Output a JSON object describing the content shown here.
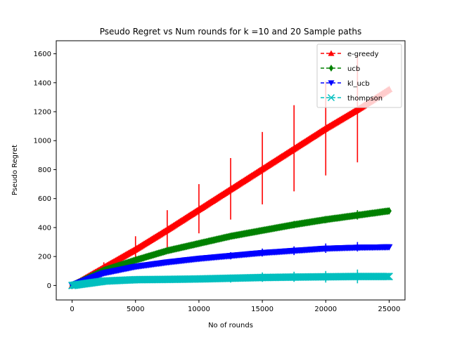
{
  "chart_data": {
    "type": "line",
    "title": "Pseudo Regret vs Num rounds for k =10 and 20 Sample paths",
    "xlabel": "No of rounds",
    "ylabel": "Pseudo Regret",
    "xlim": [
      -1250,
      26250
    ],
    "ylim": [
      -100,
      1690
    ],
    "xticks": [
      0,
      5000,
      10000,
      15000,
      20000,
      25000
    ],
    "yticks": [
      0,
      200,
      400,
      600,
      800,
      1000,
      1200,
      1400,
      1600
    ],
    "grid": false,
    "legend_position": "top-right",
    "series": [
      {
        "name": "e-greedy",
        "color": "#ff0000",
        "marker": "triangle-up",
        "x": [
          0,
          2500,
          5000,
          7500,
          10000,
          12500,
          15000,
          17500,
          20000,
          22500,
          25000
        ],
        "y": [
          0,
          125,
          250,
          385,
          525,
          665,
          805,
          945,
          1085,
          1215,
          1355
        ],
        "err_x": [
          2500,
          5000,
          7500,
          10000,
          12500,
          15000,
          17500,
          20000,
          22500
        ],
        "err_low": [
          90,
          160,
          250,
          360,
          455,
          560,
          650,
          760,
          850
        ],
        "err_high": [
          160,
          340,
          520,
          700,
          880,
          1060,
          1245,
          1410,
          1590
        ]
      },
      {
        "name": "ucb",
        "color": "#008000",
        "marker": "diamond",
        "x": [
          0,
          2500,
          5000,
          7500,
          10000,
          12500,
          15000,
          17500,
          20000,
          22500,
          25000
        ],
        "y": [
          0,
          105,
          175,
          240,
          290,
          340,
          380,
          420,
          455,
          485,
          515
        ],
        "err_x": [
          2500,
          5000,
          7500,
          10000,
          12500,
          15000,
          17500,
          20000,
          22500
        ],
        "err_low": [
          95,
          160,
          225,
          275,
          320,
          360,
          395,
          430,
          455
        ],
        "err_high": [
          115,
          190,
          255,
          310,
          360,
          400,
          445,
          480,
          520
        ]
      },
      {
        "name": "kl_ucb",
        "color": "#0000ff",
        "marker": "triangle-down",
        "x": [
          0,
          2500,
          5000,
          7500,
          10000,
          12500,
          15000,
          17500,
          20000,
          22500,
          25000
        ],
        "y": [
          0,
          85,
          130,
          160,
          185,
          205,
          225,
          240,
          255,
          262,
          265
        ],
        "err_x": [
          2500,
          5000,
          7500,
          10000,
          12500,
          15000,
          17500,
          20000,
          22500
        ],
        "err_low": [
          75,
          115,
          145,
          165,
          180,
          200,
          210,
          225,
          235
        ],
        "err_high": [
          95,
          145,
          175,
          205,
          230,
          255,
          270,
          290,
          300
        ]
      },
      {
        "name": "thompson",
        "color": "#00bfbf",
        "marker": "x",
        "x": [
          0,
          2500,
          5000,
          7500,
          10000,
          12500,
          15000,
          17500,
          20000,
          22500,
          25000
        ],
        "y": [
          0,
          30,
          40,
          42,
          45,
          50,
          55,
          58,
          60,
          62,
          62
        ],
        "err_x": [
          2500,
          5000,
          7500,
          10000,
          12500,
          15000,
          17500,
          20000,
          22500
        ],
        "err_low": [
          20,
          25,
          25,
          25,
          20,
          25,
          25,
          20,
          15
        ],
        "err_high": [
          40,
          55,
          60,
          65,
          75,
          90,
          95,
          100,
          110
        ]
      }
    ]
  }
}
